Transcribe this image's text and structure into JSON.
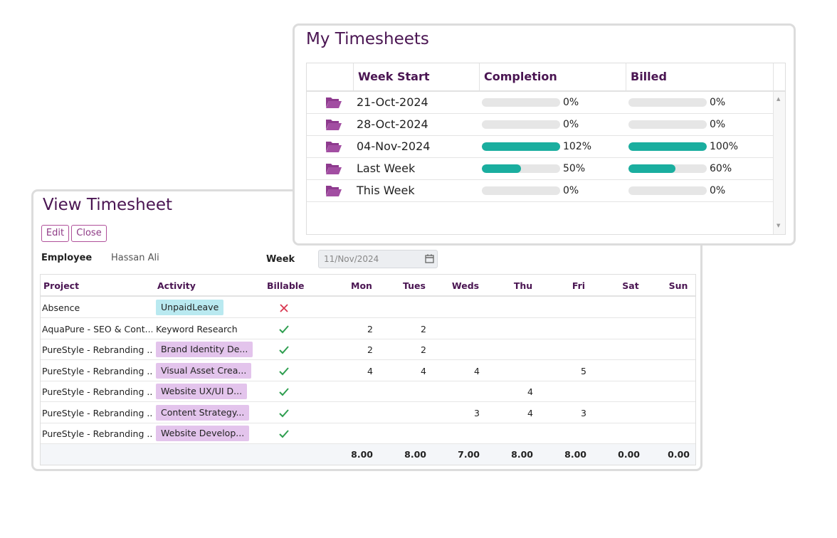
{
  "my_timesheets": {
    "title": "My Timesheets",
    "columns": [
      "Week Start",
      "Completion",
      "Billed"
    ],
    "rows": [
      {
        "week_start": "21-Oct-2024",
        "completion": {
          "value": 0,
          "label": "0%"
        },
        "billed": {
          "value": 0,
          "label": "0%"
        }
      },
      {
        "week_start": "28-Oct-2024",
        "completion": {
          "value": 0,
          "label": "0%"
        },
        "billed": {
          "value": 0,
          "label": "0%"
        }
      },
      {
        "week_start": "04-Nov-2024",
        "completion": {
          "value": 102,
          "label": "102%"
        },
        "billed": {
          "value": 100,
          "label": "100%"
        }
      },
      {
        "week_start": "Last Week",
        "completion": {
          "value": 50,
          "label": "50%"
        },
        "billed": {
          "value": 60,
          "label": "60%"
        }
      },
      {
        "week_start": "This Week",
        "completion": {
          "value": 0,
          "label": "0%"
        },
        "billed": {
          "value": 0,
          "label": "0%"
        }
      }
    ]
  },
  "view_timesheet": {
    "title": "View Timesheet",
    "buttons": [
      "Edit",
      "Close"
    ],
    "employee_label": "Employee",
    "employee": "Hassan Ali",
    "week_label": "Week",
    "week": "11/Nov/2024",
    "columns": [
      "Project",
      "Activity",
      "Billable",
      "Mon",
      "Tues",
      "Weds",
      "Thu",
      "Fri",
      "Sat",
      "Sun"
    ],
    "rows": [
      {
        "project": "Absence",
        "activity": "UnpaidLeave",
        "activity_color": "#b9e9f0",
        "billable": false,
        "hours": [
          null,
          null,
          null,
          null,
          null,
          null,
          null
        ]
      },
      {
        "project": "AquaPure - SEO & Cont...",
        "activity": "Keyword Research",
        "activity_color": null,
        "billable": true,
        "hours": [
          2,
          2,
          null,
          null,
          null,
          null,
          null
        ]
      },
      {
        "project": "PureStyle - Rebranding ...",
        "activity": "Brand Identity De...",
        "activity_color": "#e3c4ec",
        "billable": true,
        "hours": [
          2,
          2,
          null,
          null,
          null,
          null,
          null
        ]
      },
      {
        "project": "PureStyle - Rebranding ...",
        "activity": "Visual Asset Crea...",
        "activity_color": "#e3c4ec",
        "billable": true,
        "hours": [
          4,
          4,
          4,
          null,
          5,
          null,
          null
        ]
      },
      {
        "project": "PureStyle - Rebranding ...",
        "activity": "Website UX/UI D...",
        "activity_color": "#e3c4ec",
        "billable": true,
        "hours": [
          null,
          null,
          null,
          4,
          null,
          null,
          null
        ]
      },
      {
        "project": "PureStyle - Rebranding ...",
        "activity": "Content Strategy...",
        "activity_color": "#e3c4ec",
        "billable": true,
        "hours": [
          null,
          null,
          3,
          4,
          3,
          null,
          null
        ]
      },
      {
        "project": "PureStyle - Rebranding ...",
        "activity": "Website Develop...",
        "activity_color": "#e3c4ec",
        "billable": true,
        "hours": [
          null,
          null,
          null,
          null,
          null,
          null,
          null
        ]
      }
    ],
    "totals": [
      "8.00",
      "8.00",
      "7.00",
      "8.00",
      "8.00",
      "0.00",
      "0.00"
    ]
  }
}
